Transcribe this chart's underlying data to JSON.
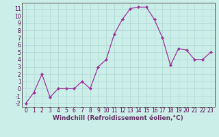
{
  "x": [
    0,
    1,
    2,
    3,
    4,
    5,
    6,
    7,
    8,
    9,
    10,
    11,
    12,
    13,
    14,
    15,
    16,
    17,
    18,
    19,
    20,
    21,
    22,
    23
  ],
  "y": [
    -2,
    -0.5,
    2,
    -1.2,
    0,
    0,
    0,
    1,
    0,
    3,
    4,
    7.5,
    9.5,
    11,
    11.2,
    11.2,
    9.5,
    7,
    3.2,
    5.5,
    5.3,
    4,
    4,
    5
  ],
  "line_color": "#993399",
  "marker_color": "#993399",
  "bg_color": "#cceee8",
  "grid_color": "#b0d8d4",
  "xlabel": "Windchill (Refroidissement éolien,°C)",
  "xlabel_fontsize": 6.5,
  "ylim": [
    -2.5,
    11.8
  ],
  "xlim": [
    -0.5,
    23.5
  ],
  "xticks": [
    0,
    1,
    2,
    3,
    4,
    5,
    6,
    7,
    8,
    9,
    10,
    11,
    12,
    13,
    14,
    15,
    16,
    17,
    18,
    19,
    20,
    21,
    22,
    23
  ],
  "yticks": [
    -2,
    -1,
    0,
    1,
    2,
    3,
    4,
    5,
    6,
    7,
    8,
    9,
    10,
    11
  ],
  "tick_fontsize": 5.5
}
